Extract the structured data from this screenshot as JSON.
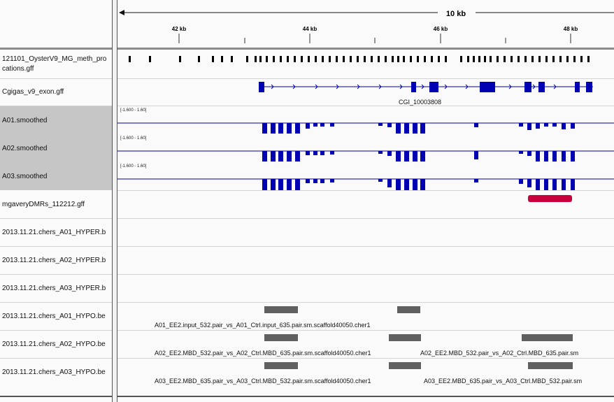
{
  "ruler": {
    "span_label": "10 kb",
    "ticks": [
      "42 kb",
      "44 kb",
      "46 kb",
      "48 kb"
    ]
  },
  "colors": {
    "gene": "#0000b2",
    "coverage": "#0000b2",
    "dmr": "#c8003c",
    "hypo": "#606060",
    "selected_name_bg": "#c6c6c6"
  },
  "tracks": [
    {
      "name": "121101_OysterV9_MG_meth_pro",
      "name2": "cations.gff"
    },
    {
      "name": "Cgigas_v9_exon.gff",
      "feature_label": "CGI_10003808"
    },
    {
      "name": "A01.smoothed",
      "range": "[-1.600 - 1.60]"
    },
    {
      "name": "A02.smoothed",
      "range": "[-1.600 - 1.60]"
    },
    {
      "name": "A03.smoothed",
      "range": "[-1.600 - 1.60]"
    },
    {
      "name": "mgaveryDMRs_112212.gff"
    },
    {
      "name": "2013.11.21.chers_A01_HYPER.b"
    },
    {
      "name": "2013.11.21.chers_A02_HYPER.b"
    },
    {
      "name": "2013.11.21.chers_A03_HYPER.b"
    },
    {
      "name": "2013.11.21.chers_A01_HYPO.be",
      "labels": [
        "A01_EE2.input_532.pair_vs_A01_Ctrl.input_635.pair.sm.scaffold40050.cher1"
      ]
    },
    {
      "name": "2013.11.21.chers_A02_HYPO.be",
      "labels": [
        "A02_EE2.MBD_532.pair_vs_A02_Ctrl.MBD_635.pair.sm.scaffold40050.cher1",
        "A02_EE2.MBD_532.pair_vs_A02_Ctrl.MBD_635.pair.sm"
      ]
    },
    {
      "name": "2013.11.21.chers_A03_HYPO.be",
      "labels": [
        "A03_EE2.MBD_635.pair_vs_A03_Ctrl.MBD_532.pair.sm.scaffold40050.cher1",
        "A03_EE2.MBD_635.pair_vs_A03_Ctrl.MBD_532.pair.sm"
      ]
    }
  ]
}
